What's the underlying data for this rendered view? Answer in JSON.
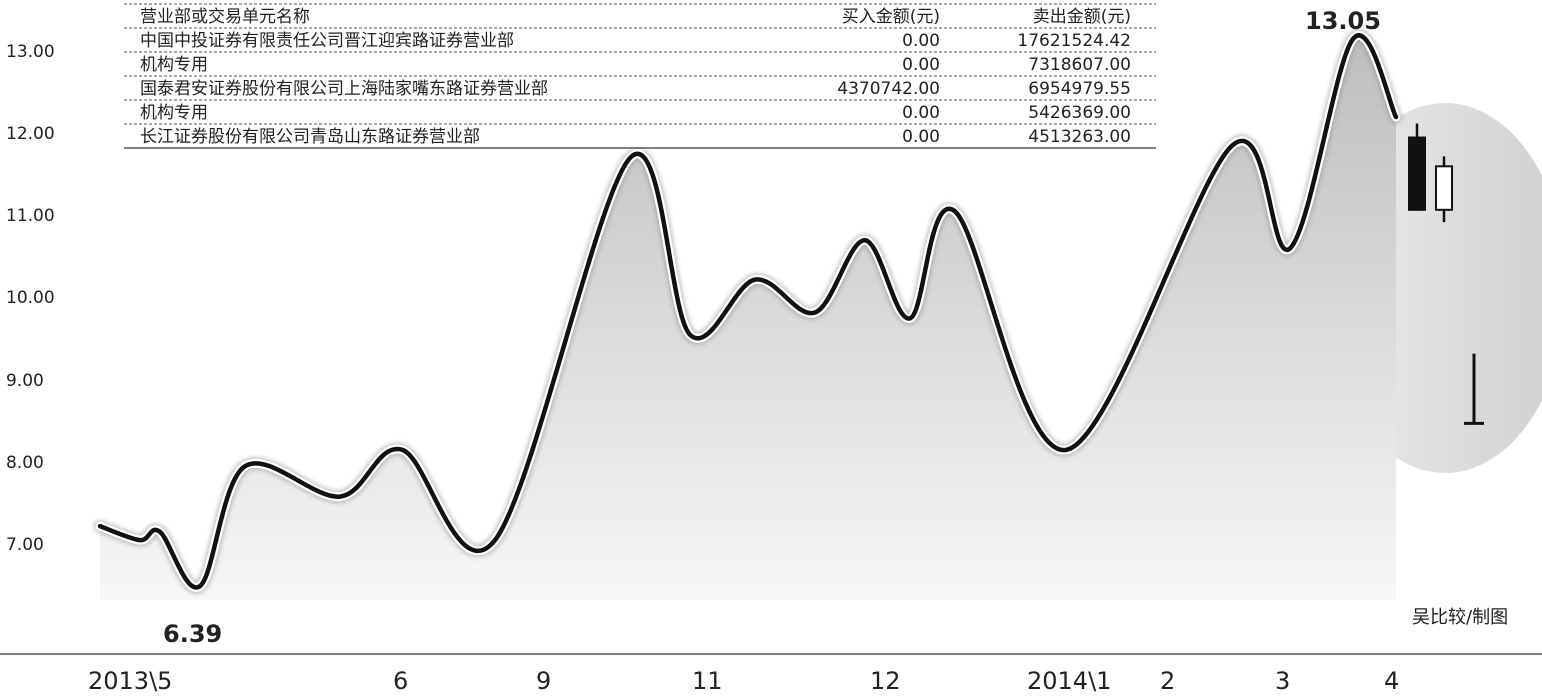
{
  "chart_data": {
    "type": "line",
    "ylim": [
      6.0,
      13.6
    ],
    "y_ticks": [
      "7.00",
      "8.00",
      "9.00",
      "10.00",
      "11.00",
      "12.00",
      "13.00"
    ],
    "x_tick_labels": [
      "2013\\5",
      "6",
      "9",
      "11",
      "12",
      "2014\\1",
      "2",
      "3",
      "4"
    ],
    "grid": false,
    "series": [
      {
        "values": [
          7.12,
          6.95,
          7.05,
          6.39,
          7.85,
          7.48,
          8.05,
          6.95,
          11.6,
          9.45,
          10.12,
          9.72,
          10.6,
          9.65,
          10.95,
          8.05,
          11.75,
          10.5,
          13.05,
          12.1
        ]
      }
    ],
    "extreme_labels": {
      "low": "6.39",
      "high": "13.05"
    },
    "candles": [
      {
        "high": 12.02,
        "top": 11.85,
        "bottom": 10.97,
        "low": 10.97,
        "filled": true
      },
      {
        "high": 11.62,
        "top": 11.5,
        "bottom": 10.97,
        "low": 10.82,
        "filled": false
      }
    ],
    "volume_bar": {
      "top_value": 9.22,
      "bottom_value": 8.37
    },
    "colors": {
      "line": "#111111",
      "area_top": "#bdbdbd",
      "area_bottom": "#f7f7f7",
      "oval": "#dcdcdc",
      "candle": "#111111"
    }
  },
  "table": {
    "headers": [
      "营业部或交易单元名称",
      "买入金额(元)",
      "卖出金额(元)"
    ],
    "rows": [
      [
        "中国中投证券有限责任公司晋江迎宾路证券营业部",
        "0.00",
        "17621524.42"
      ],
      [
        "机构专用",
        "0.00",
        "7318607.00"
      ],
      [
        "国泰君安证券股份有限公司上海陆家嘴东路证券营业部",
        "4370742.00",
        "6954979.55"
      ],
      [
        "机构专用",
        "0.00",
        "5426369.00"
      ],
      [
        "长江证券股份有限公司青岛山东路证券营业部",
        "0.00",
        "4513263.00"
      ]
    ]
  },
  "credit": "吴比较/制图"
}
